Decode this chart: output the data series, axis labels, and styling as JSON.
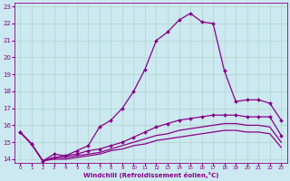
{
  "background_color": "#cce8f0",
  "grid_color": "#b0d4c8",
  "line_color": "#880088",
  "xlabel": "Windchill (Refroidissement éolien,°C)",
  "xlim": [
    -0.5,
    23.5
  ],
  "ylim": [
    13.8,
    23.2
  ],
  "yticks": [
    14,
    15,
    16,
    17,
    18,
    19,
    20,
    21,
    22,
    23
  ],
  "xticks": [
    0,
    1,
    2,
    3,
    4,
    5,
    6,
    7,
    8,
    9,
    10,
    11,
    12,
    13,
    14,
    15,
    16,
    17,
    18,
    19,
    20,
    21,
    22,
    23
  ],
  "series": [
    {
      "x": [
        0,
        1,
        2,
        3,
        4,
        5,
        6,
        7,
        8,
        9,
        10,
        11,
        12,
        13,
        14,
        15,
        16,
        17,
        18,
        19,
        20,
        21,
        22,
        23
      ],
      "y": [
        15.6,
        14.9,
        13.9,
        14.3,
        14.2,
        14.5,
        14.8,
        15.9,
        16.3,
        17.0,
        18.0,
        19.3,
        21.0,
        21.5,
        22.2,
        22.6,
        22.1,
        22.0,
        19.2,
        17.4,
        17.5,
        17.5,
        17.3,
        16.3
      ],
      "marker": "D",
      "markersize": 2.0,
      "linewidth": 0.9
    },
    {
      "x": [
        0,
        1,
        2,
        3,
        4,
        5,
        6,
        7,
        8,
        9,
        10,
        11,
        12,
        13,
        14,
        15,
        16,
        17,
        18,
        19,
        20,
        21,
        22,
        23
      ],
      "y": [
        15.6,
        14.9,
        13.9,
        14.1,
        14.2,
        14.3,
        14.5,
        14.6,
        14.8,
        15.0,
        15.3,
        15.6,
        15.9,
        16.1,
        16.3,
        16.4,
        16.5,
        16.6,
        16.6,
        16.6,
        16.5,
        16.5,
        16.5,
        15.4
      ],
      "marker": "D",
      "markersize": 2.0,
      "linewidth": 0.9
    },
    {
      "x": [
        0,
        1,
        2,
        3,
        4,
        5,
        6,
        7,
        8,
        9,
        10,
        11,
        12,
        13,
        14,
        15,
        16,
        17,
        18,
        19,
        20,
        21,
        22,
        23
      ],
      "y": [
        15.6,
        14.9,
        13.9,
        14.1,
        14.1,
        14.2,
        14.3,
        14.4,
        14.6,
        14.8,
        15.0,
        15.2,
        15.4,
        15.5,
        15.7,
        15.8,
        15.9,
        16.0,
        16.1,
        16.1,
        16.0,
        16.0,
        15.9,
        15.0
      ],
      "marker": null,
      "markersize": 0,
      "linewidth": 0.9
    },
    {
      "x": [
        0,
        1,
        2,
        3,
        4,
        5,
        6,
        7,
        8,
        9,
        10,
        11,
        12,
        13,
        14,
        15,
        16,
        17,
        18,
        19,
        20,
        21,
        22,
        23
      ],
      "y": [
        15.6,
        14.9,
        13.9,
        14.0,
        14.0,
        14.1,
        14.2,
        14.3,
        14.5,
        14.6,
        14.8,
        14.9,
        15.1,
        15.2,
        15.3,
        15.4,
        15.5,
        15.6,
        15.7,
        15.7,
        15.6,
        15.6,
        15.5,
        14.7
      ],
      "marker": null,
      "markersize": 0,
      "linewidth": 0.9
    }
  ]
}
